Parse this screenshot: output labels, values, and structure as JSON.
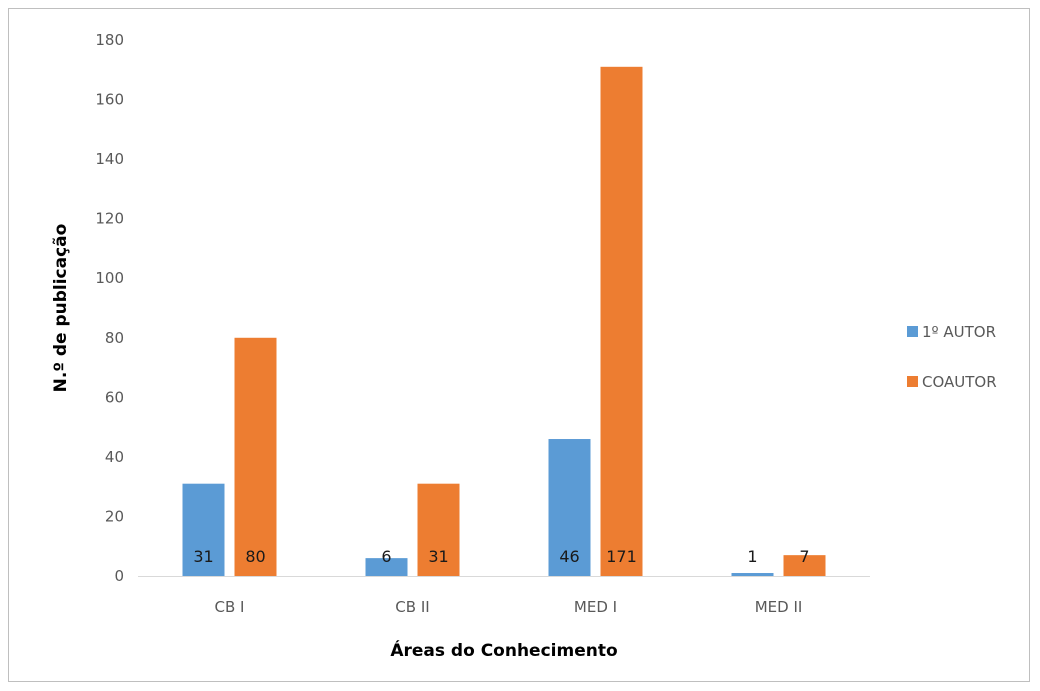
{
  "chart_data": {
    "type": "bar",
    "title": "",
    "xlabel": "Áreas do Conhecimento",
    "ylabel": "N.º de publicação",
    "categories": [
      "CB I",
      "CB II",
      "MED I",
      "MED II"
    ],
    "series": [
      {
        "name": "1º AUTOR",
        "values": [
          31,
          6,
          46,
          1
        ],
        "labels": [
          "31",
          "6",
          "46",
          "1"
        ],
        "color": "#5b9bd5"
      },
      {
        "name": "COAUTOR",
        "values": [
          80,
          31,
          171,
          7
        ],
        "labels": [
          "80",
          "31",
          "171",
          "7"
        ],
        "color": "#ed7d31"
      }
    ],
    "ylim": [
      0,
      180
    ],
    "yticks": [
      0,
      20,
      40,
      60,
      80,
      100,
      120,
      140,
      160,
      180
    ],
    "grid": false,
    "legend": "right"
  }
}
